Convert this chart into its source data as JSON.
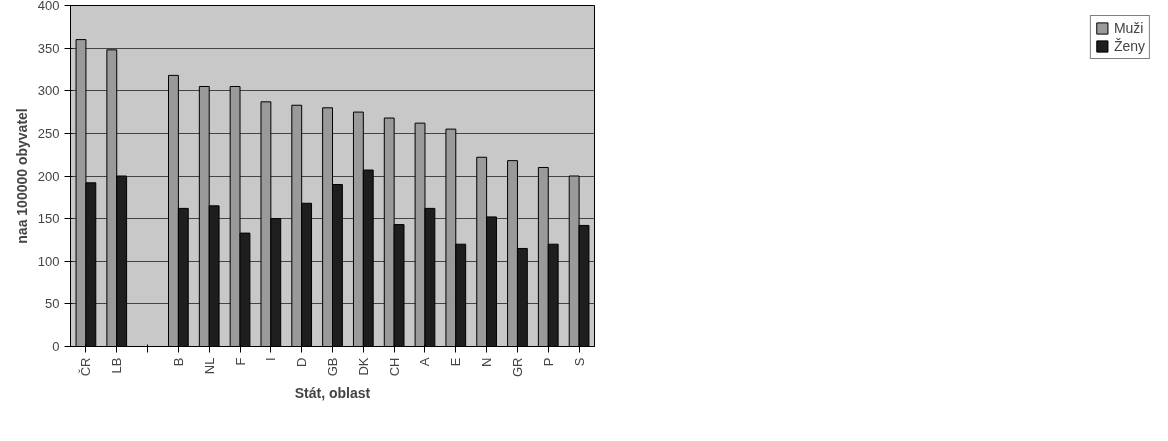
{
  "chart_data": {
    "type": "bar",
    "xlabel": "Stát, oblast",
    "ylabel": "naa 100000 obyvatel",
    "categories": [
      "ČR",
      "LB",
      null,
      "B",
      "NL",
      "F",
      "I",
      "D",
      "GB",
      "DK",
      "CH",
      "A",
      "E",
      "N",
      "GR",
      "P",
      "S"
    ],
    "series": [
      {
        "name": "Muži",
        "color": "#9a9a9a",
        "values": [
          360,
          348,
          null,
          318,
          305,
          305,
          287,
          283,
          280,
          275,
          268,
          262,
          255,
          222,
          218,
          210,
          200
        ]
      },
      {
        "name": "Ženy",
        "color": "#1e1e1e",
        "values": [
          192,
          200,
          null,
          162,
          165,
          133,
          150,
          168,
          190,
          207,
          143,
          162,
          120,
          152,
          115,
          120,
          142
        ]
      }
    ],
    "ylim": [
      0,
      400
    ],
    "yticks": [
      0,
      50,
      100,
      150,
      200,
      250,
      300,
      350,
      400
    ],
    "grid": "y",
    "legend": "right"
  }
}
